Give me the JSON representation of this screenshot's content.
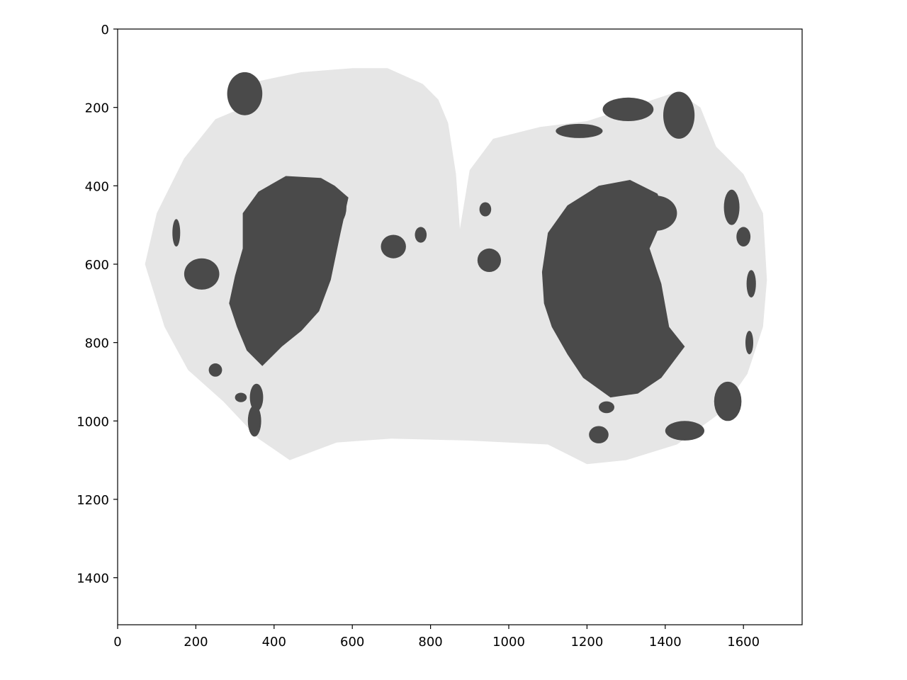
{
  "chart_data": {
    "type": "heatmap",
    "title": "",
    "xlabel": "",
    "ylabel": "",
    "xlim": [
      0,
      1750
    ],
    "ylim": [
      1520,
      0
    ],
    "y_inverted": true,
    "grid": false,
    "x_ticks": [
      0,
      200,
      400,
      600,
      800,
      1000,
      1200,
      1400,
      1600
    ],
    "y_ticks": [
      0,
      200,
      400,
      600,
      800,
      1000,
      1200,
      1400
    ],
    "colormap": "gray (two-level mask)",
    "colors": {
      "tissue": "#e6e6e6",
      "lesion": "#4a4a4a",
      "background": "#ffffff"
    },
    "regions": [
      {
        "name": "tissue",
        "shape": "polygon",
        "points": [
          [
            310,
            205
          ],
          [
            350,
            135
          ],
          [
            470,
            110
          ],
          [
            600,
            100
          ],
          [
            690,
            100
          ],
          [
            780,
            140
          ],
          [
            820,
            180
          ],
          [
            845,
            240
          ],
          [
            865,
            370
          ],
          [
            875,
            510
          ],
          [
            900,
            360
          ],
          [
            960,
            280
          ],
          [
            1080,
            250
          ],
          [
            1200,
            235
          ],
          [
            1340,
            190
          ],
          [
            1430,
            160
          ],
          [
            1490,
            200
          ],
          [
            1530,
            300
          ],
          [
            1600,
            370
          ],
          [
            1650,
            470
          ],
          [
            1660,
            640
          ],
          [
            1650,
            760
          ],
          [
            1610,
            880
          ],
          [
            1540,
            980
          ],
          [
            1430,
            1060
          ],
          [
            1300,
            1100
          ],
          [
            1200,
            1110
          ],
          [
            1100,
            1060
          ],
          [
            900,
            1050
          ],
          [
            700,
            1045
          ],
          [
            560,
            1055
          ],
          [
            440,
            1100
          ],
          [
            360,
            1045
          ],
          [
            270,
            950
          ],
          [
            180,
            870
          ],
          [
            120,
            760
          ],
          [
            70,
            600
          ],
          [
            100,
            470
          ],
          [
            170,
            330
          ],
          [
            250,
            230
          ]
        ]
      },
      {
        "name": "lesion",
        "shape": "polygon",
        "points": [
          [
            320,
            470
          ],
          [
            360,
            415
          ],
          [
            430,
            375
          ],
          [
            520,
            380
          ],
          [
            555,
            400
          ],
          [
            590,
            430
          ],
          [
            570,
            520
          ],
          [
            545,
            640
          ],
          [
            515,
            720
          ],
          [
            470,
            770
          ],
          [
            420,
            810
          ],
          [
            370,
            860
          ],
          [
            330,
            820
          ],
          [
            305,
            760
          ],
          [
            285,
            700
          ],
          [
            300,
            630
          ],
          [
            320,
            560
          ]
        ]
      },
      {
        "name": "lesion",
        "shape": "polygon",
        "points": [
          [
            1100,
            520
          ],
          [
            1150,
            450
          ],
          [
            1230,
            400
          ],
          [
            1310,
            385
          ],
          [
            1380,
            420
          ],
          [
            1400,
            470
          ],
          [
            1360,
            560
          ],
          [
            1390,
            650
          ],
          [
            1410,
            760
          ],
          [
            1450,
            810
          ],
          [
            1390,
            890
          ],
          [
            1330,
            930
          ],
          [
            1260,
            940
          ],
          [
            1190,
            890
          ],
          [
            1150,
            830
          ],
          [
            1110,
            760
          ],
          [
            1090,
            700
          ],
          [
            1085,
            620
          ]
        ]
      },
      {
        "name": "lesion",
        "shape": "ellipse",
        "cx": 325,
        "cy": 165,
        "rx": 45,
        "ry": 55
      },
      {
        "name": "lesion",
        "shape": "ellipse",
        "cx": 1435,
        "cy": 220,
        "rx": 40,
        "ry": 60
      },
      {
        "name": "lesion",
        "shape": "ellipse",
        "cx": 215,
        "cy": 625,
        "rx": 45,
        "ry": 40
      },
      {
        "name": "lesion",
        "shape": "ellipse",
        "cx": 550,
        "cy": 455,
        "rx": 35,
        "ry": 50
      },
      {
        "name": "lesion",
        "shape": "ellipse",
        "cx": 705,
        "cy": 555,
        "rx": 32,
        "ry": 30
      },
      {
        "name": "lesion",
        "shape": "ellipse",
        "cx": 1195,
        "cy": 810,
        "rx": 37,
        "ry": 45
      },
      {
        "name": "lesion",
        "shape": "ellipse",
        "cx": 1375,
        "cy": 470,
        "rx": 55,
        "ry": 45
      },
      {
        "name": "lesion",
        "shape": "ellipse",
        "cx": 950,
        "cy": 590,
        "rx": 30,
        "ry": 30
      },
      {
        "name": "lesion",
        "shape": "ellipse",
        "cx": 940,
        "cy": 460,
        "rx": 15,
        "ry": 18
      },
      {
        "name": "lesion",
        "shape": "ellipse",
        "cx": 1230,
        "cy": 1035,
        "rx": 25,
        "ry": 22
      },
      {
        "name": "lesion",
        "shape": "ellipse",
        "cx": 1250,
        "cy": 965,
        "rx": 20,
        "ry": 15
      },
      {
        "name": "lesion",
        "shape": "ellipse",
        "cx": 350,
        "cy": 1000,
        "rx": 17,
        "ry": 40
      },
      {
        "name": "lesion",
        "shape": "ellipse",
        "cx": 355,
        "cy": 940,
        "rx": 17,
        "ry": 35
      },
      {
        "name": "lesion",
        "shape": "ellipse",
        "cx": 315,
        "cy": 940,
        "rx": 15,
        "ry": 12
      },
      {
        "name": "lesion",
        "shape": "ellipse",
        "cx": 250,
        "cy": 870,
        "rx": 17,
        "ry": 17
      },
      {
        "name": "lesion",
        "shape": "ellipse",
        "cx": 1570,
        "cy": 455,
        "rx": 20,
        "ry": 45
      },
      {
        "name": "lesion",
        "shape": "ellipse",
        "cx": 1600,
        "cy": 530,
        "rx": 18,
        "ry": 25
      },
      {
        "name": "lesion",
        "shape": "ellipse",
        "cx": 1560,
        "cy": 950,
        "rx": 35,
        "ry": 50
      },
      {
        "name": "lesion",
        "shape": "ellipse",
        "cx": 1305,
        "cy": 205,
        "rx": 65,
        "ry": 30
      },
      {
        "name": "lesion",
        "shape": "ellipse",
        "cx": 1180,
        "cy": 260,
        "rx": 60,
        "ry": 18
      },
      {
        "name": "lesion",
        "shape": "ellipse",
        "cx": 1450,
        "cy": 1025,
        "rx": 50,
        "ry": 25
      },
      {
        "name": "lesion",
        "shape": "ellipse",
        "cx": 775,
        "cy": 525,
        "rx": 15,
        "ry": 20
      },
      {
        "name": "lesion",
        "shape": "ellipse",
        "cx": 1615,
        "cy": 800,
        "rx": 10,
        "ry": 30
      },
      {
        "name": "lesion",
        "shape": "ellipse",
        "cx": 150,
        "cy": 520,
        "rx": 10,
        "ry": 35
      },
      {
        "name": "lesion",
        "shape": "ellipse",
        "cx": 1620,
        "cy": 650,
        "rx": 12,
        "ry": 35
      }
    ]
  }
}
